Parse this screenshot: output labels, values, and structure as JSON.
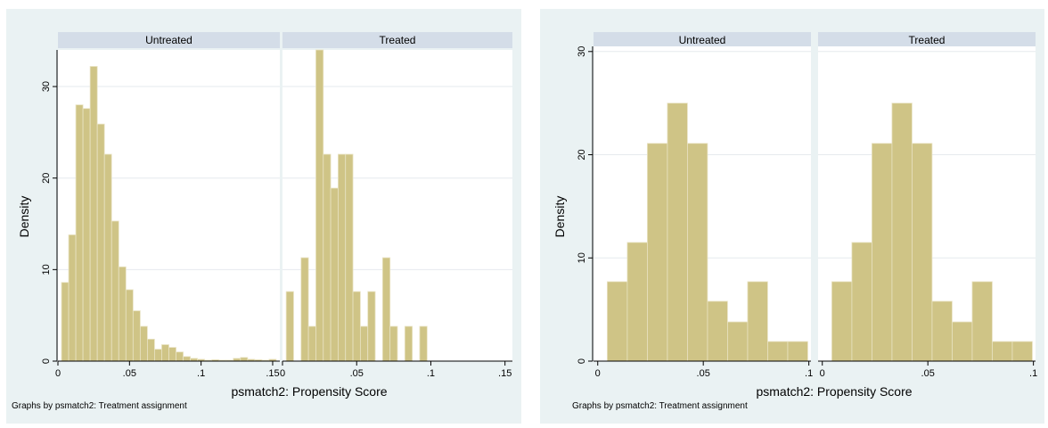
{
  "chart_data": [
    {
      "type": "histogram",
      "ylabel": "Density",
      "xlabel": "psmatch2: Propensity Score",
      "note": "Graphs by psmatch2: Treatment assignment",
      "ylim": [
        0,
        34
      ],
      "yticks": [
        0,
        10,
        20,
        30
      ],
      "ytick_labels": [
        "0",
        "10",
        "20",
        "30"
      ],
      "xlim": [
        0,
        0.155
      ],
      "xticks": [
        0,
        0.05,
        0.1,
        0.15
      ],
      "xtick_labels": [
        "0",
        ".05",
        ".1",
        ".15"
      ],
      "grid": true,
      "bar_color": "#cfc486",
      "panels": [
        {
          "name": "Untreated",
          "bar_width": 0.005,
          "bars": [
            {
              "x0": 0.0025,
              "y": 8.6
            },
            {
              "x0": 0.0075,
              "y": 13.8
            },
            {
              "x0": 0.0125,
              "y": 28.0
            },
            {
              "x0": 0.0175,
              "y": 27.6
            },
            {
              "x0": 0.0225,
              "y": 32.2
            },
            {
              "x0": 0.0275,
              "y": 25.9
            },
            {
              "x0": 0.0325,
              "y": 22.6
            },
            {
              "x0": 0.0375,
              "y": 15.3
            },
            {
              "x0": 0.0425,
              "y": 10.3
            },
            {
              "x0": 0.0475,
              "y": 7.8
            },
            {
              "x0": 0.0525,
              "y": 5.5
            },
            {
              "x0": 0.0575,
              "y": 3.8
            },
            {
              "x0": 0.0625,
              "y": 2.4
            },
            {
              "x0": 0.0675,
              "y": 1.3
            },
            {
              "x0": 0.0725,
              "y": 1.8
            },
            {
              "x0": 0.0775,
              "y": 1.5
            },
            {
              "x0": 0.0825,
              "y": 1.0
            },
            {
              "x0": 0.0875,
              "y": 0.5
            },
            {
              "x0": 0.0925,
              "y": 0.3
            },
            {
              "x0": 0.0975,
              "y": 0.2
            },
            {
              "x0": 0.1025,
              "y": 0.1
            },
            {
              "x0": 0.1075,
              "y": 0.15
            },
            {
              "x0": 0.1125,
              "y": 0.1
            },
            {
              "x0": 0.1175,
              "y": 0.1
            },
            {
              "x0": 0.1225,
              "y": 0.3
            },
            {
              "x0": 0.1275,
              "y": 0.4
            },
            {
              "x0": 0.1325,
              "y": 0.2
            },
            {
              "x0": 0.1375,
              "y": 0.15
            },
            {
              "x0": 0.1425,
              "y": 0.1
            },
            {
              "x0": 0.1475,
              "y": 0.2
            }
          ]
        },
        {
          "name": "Treated",
          "bar_width": 0.005,
          "bars": [
            {
              "x0": 0.0025,
              "y": 7.6
            },
            {
              "x0": 0.0075,
              "y": 0
            },
            {
              "x0": 0.0125,
              "y": 11.3
            },
            {
              "x0": 0.0175,
              "y": 3.8
            },
            {
              "x0": 0.0225,
              "y": 34.0
            },
            {
              "x0": 0.0275,
              "y": 22.6
            },
            {
              "x0": 0.0325,
              "y": 18.9
            },
            {
              "x0": 0.0375,
              "y": 22.6
            },
            {
              "x0": 0.0425,
              "y": 22.6
            },
            {
              "x0": 0.0475,
              "y": 7.6
            },
            {
              "x0": 0.0525,
              "y": 3.8
            },
            {
              "x0": 0.0575,
              "y": 7.6
            },
            {
              "x0": 0.0625,
              "y": 0
            },
            {
              "x0": 0.0675,
              "y": 11.3
            },
            {
              "x0": 0.0725,
              "y": 3.8
            },
            {
              "x0": 0.0775,
              "y": 0
            },
            {
              "x0": 0.0825,
              "y": 3.8
            },
            {
              "x0": 0.0875,
              "y": 0
            },
            {
              "x0": 0.0925,
              "y": 3.8
            }
          ]
        }
      ]
    },
    {
      "type": "histogram",
      "ylabel": "Density",
      "xlabel": "psmatch2: Propensity Score",
      "note": "Graphs by psmatch2: Treatment assignment",
      "ylim": [
        0,
        30.5
      ],
      "yticks": [
        0,
        10,
        20,
        30
      ],
      "ytick_labels": [
        "0",
        "10",
        "20",
        "30"
      ],
      "xlim": [
        -0.002,
        0.101
      ],
      "xticks": [
        0,
        0.05,
        0.1
      ],
      "xtick_labels": [
        "0",
        ".05",
        ".1"
      ],
      "grid": true,
      "bar_color": "#cfc486",
      "panels": [
        {
          "name": "Untreated",
          "bar_width": 0.0095,
          "bars": [
            {
              "x0": 0.0045,
              "y": 7.7
            },
            {
              "x0": 0.014,
              "y": 11.5
            },
            {
              "x0": 0.0235,
              "y": 21.1
            },
            {
              "x0": 0.033,
              "y": 25.0
            },
            {
              "x0": 0.0425,
              "y": 21.1
            },
            {
              "x0": 0.052,
              "y": 5.8
            },
            {
              "x0": 0.0615,
              "y": 3.8
            },
            {
              "x0": 0.071,
              "y": 7.7
            },
            {
              "x0": 0.0805,
              "y": 1.9
            },
            {
              "x0": 0.09,
              "y": 1.9
            }
          ]
        },
        {
          "name": "Treated",
          "bar_width": 0.0095,
          "bars": [
            {
              "x0": 0.0045,
              "y": 7.7
            },
            {
              "x0": 0.014,
              "y": 11.5
            },
            {
              "x0": 0.0235,
              "y": 21.1
            },
            {
              "x0": 0.033,
              "y": 25.0
            },
            {
              "x0": 0.0425,
              "y": 21.1
            },
            {
              "x0": 0.052,
              "y": 5.8
            },
            {
              "x0": 0.0615,
              "y": 3.8
            },
            {
              "x0": 0.071,
              "y": 7.7
            },
            {
              "x0": 0.0805,
              "y": 1.9
            },
            {
              "x0": 0.09,
              "y": 1.9
            }
          ]
        }
      ]
    }
  ]
}
